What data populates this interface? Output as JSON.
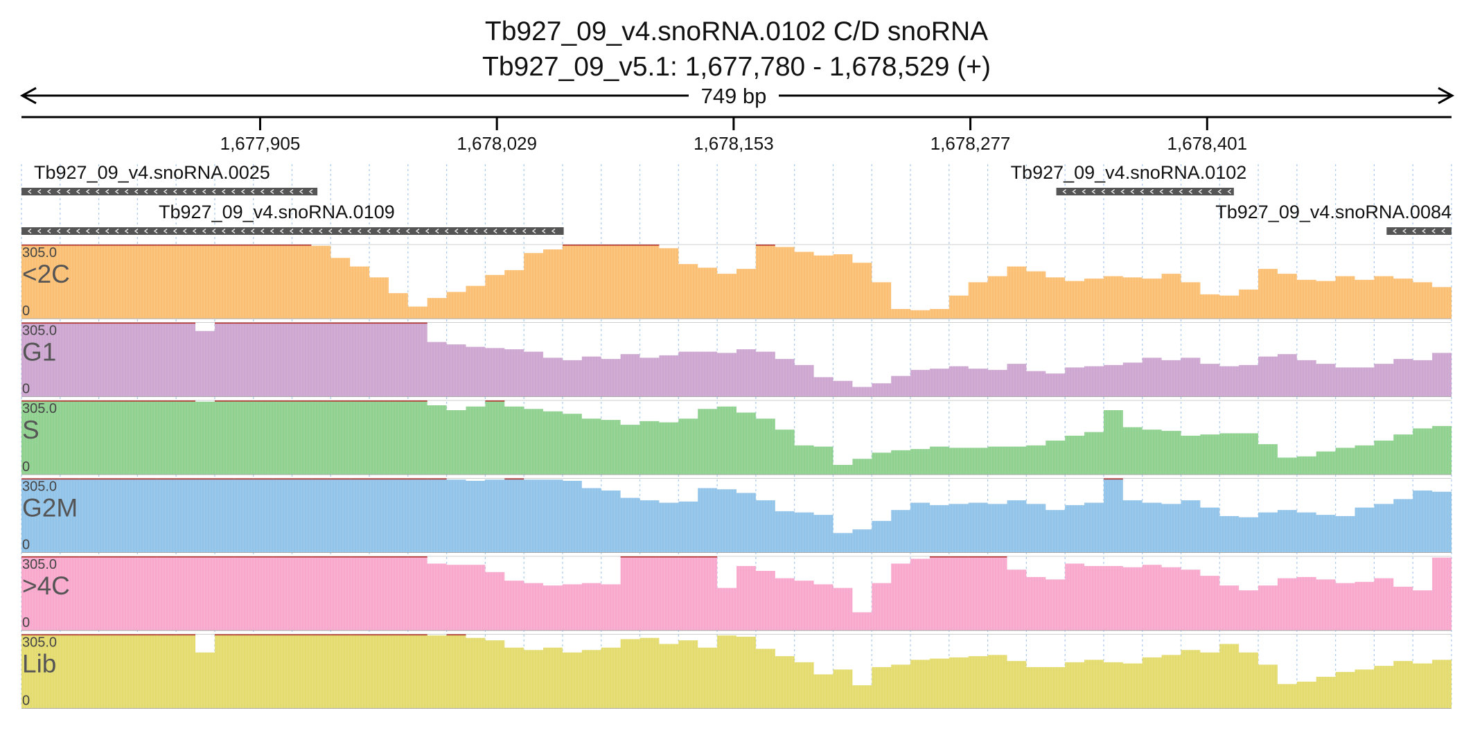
{
  "header": {
    "title_line1": "Tb927_09_v4.snoRNA.0102  C/D snoRNA",
    "title_line2": "Tb927_09_v5.1: 1,677,780 - 1,678,529 (+)",
    "span_label": "749 bp"
  },
  "chart_data": {
    "type": "area",
    "chromosome": "Tb927_09_v5.1",
    "region": {
      "start": 1677780,
      "end": 1678529,
      "strand": "+"
    },
    "x_ticks": [
      1677905,
      1678029,
      1678153,
      1678277,
      1678401
    ],
    "x_tick_labels": [
      "1,677,905",
      "1,678,029",
      "1,678,153",
      "1,678,277",
      "1,678,401"
    ],
    "ylim": [
      0,
      305.0
    ],
    "y_max_label": "305.0",
    "y_min_label": "0",
    "bin_count": 74,
    "genes": [
      {
        "name": "Tb927_09_v4.snoRNA.0025",
        "start": 1677780,
        "end": 1677935,
        "strand": "-"
      },
      {
        "name": "Tb927_09_v4.snoRNA.0109",
        "start": 1677780,
        "end": 1678064,
        "strand": "-"
      },
      {
        "name": "Tb927_09_v4.snoRNA.0102",
        "start": 1678322,
        "end": 1678415,
        "strand": "-"
      },
      {
        "name": "Tb927_09_v4.snoRNA.0084",
        "start": 1678495,
        "end": 1678529,
        "strand": "-"
      }
    ],
    "series": [
      {
        "name": "<2C",
        "color": "#fbbf74",
        "values": [
          305,
          305,
          305,
          305,
          305,
          305,
          305,
          305,
          305,
          305,
          305,
          305,
          305,
          305,
          305,
          300,
          250,
          215,
          170,
          105,
          50,
          85,
          110,
          135,
          180,
          200,
          270,
          285,
          305,
          305,
          305,
          305,
          305,
          290,
          225,
          210,
          185,
          205,
          305,
          295,
          275,
          260,
          265,
          230,
          150,
          40,
          35,
          40,
          95,
          150,
          175,
          215,
          195,
          170,
          155,
          165,
          175,
          170,
          165,
          185,
          150,
          100,
          95,
          120,
          205,
          185,
          160,
          155,
          175,
          160,
          175,
          165,
          150,
          130
        ]
      },
      {
        "name": "G1",
        "color": "#cda6d1",
        "values": [
          305,
          305,
          305,
          305,
          305,
          305,
          305,
          305,
          305,
          270,
          305,
          305,
          305,
          305,
          305,
          305,
          305,
          305,
          305,
          305,
          305,
          225,
          215,
          205,
          200,
          195,
          185,
          160,
          150,
          165,
          155,
          175,
          160,
          170,
          185,
          185,
          180,
          195,
          185,
          155,
          130,
          80,
          65,
          40,
          55,
          85,
          110,
          115,
          125,
          115,
          110,
          135,
          105,
          95,
          120,
          125,
          130,
          140,
          160,
          150,
          160,
          135,
          125,
          130,
          165,
          175,
          150,
          135,
          120,
          120,
          135,
          155,
          150,
          180
        ]
      },
      {
        "name": "S",
        "color": "#8fd18f",
        "values": [
          305,
          305,
          305,
          305,
          305,
          305,
          305,
          305,
          305,
          300,
          305,
          305,
          305,
          305,
          305,
          305,
          305,
          305,
          305,
          305,
          305,
          285,
          265,
          280,
          305,
          280,
          270,
          260,
          250,
          230,
          225,
          205,
          220,
          215,
          230,
          270,
          280,
          255,
          230,
          185,
          120,
          115,
          40,
          65,
          90,
          100,
          105,
          115,
          110,
          110,
          115,
          115,
          120,
          140,
          160,
          175,
          265,
          195,
          185,
          180,
          160,
          165,
          170,
          170,
          125,
          70,
          75,
          95,
          110,
          120,
          140,
          165,
          190,
          200
        ]
      },
      {
        "name": "G2M",
        "color": "#92c3e9",
        "values": [
          305,
          305,
          305,
          305,
          305,
          305,
          305,
          305,
          305,
          305,
          305,
          305,
          305,
          305,
          305,
          305,
          305,
          305,
          305,
          305,
          305,
          305,
          300,
          295,
          300,
          305,
          300,
          300,
          295,
          265,
          255,
          225,
          215,
          205,
          210,
          265,
          260,
          245,
          215,
          170,
          165,
          155,
          80,
          95,
          130,
          175,
          205,
          195,
          200,
          205,
          200,
          215,
          200,
          175,
          195,
          205,
          305,
          215,
          205,
          200,
          215,
          185,
          150,
          145,
          165,
          175,
          165,
          155,
          150,
          185,
          200,
          220,
          255,
          250
        ]
      },
      {
        "name": ">4C",
        "color": "#f7a8cc",
        "values": [
          305,
          305,
          305,
          305,
          305,
          305,
          305,
          305,
          305,
          305,
          305,
          305,
          305,
          305,
          305,
          305,
          305,
          305,
          305,
          305,
          305,
          275,
          270,
          270,
          240,
          205,
          195,
          185,
          190,
          195,
          190,
          305,
          305,
          305,
          305,
          305,
          175,
          265,
          245,
          215,
          205,
          190,
          175,
          75,
          195,
          275,
          295,
          305,
          305,
          305,
          305,
          250,
          220,
          210,
          275,
          265,
          265,
          260,
          270,
          260,
          250,
          225,
          185,
          165,
          185,
          215,
          220,
          210,
          195,
          200,
          215,
          180,
          165,
          300
        ]
      },
      {
        "name": "Lib",
        "color": "#e4db6e",
        "values": [
          305,
          305,
          305,
          305,
          305,
          305,
          305,
          305,
          305,
          230,
          305,
          305,
          305,
          305,
          305,
          305,
          305,
          305,
          305,
          305,
          305,
          300,
          305,
          290,
          280,
          250,
          240,
          250,
          230,
          240,
          250,
          285,
          290,
          265,
          280,
          250,
          300,
          295,
          245,
          215,
          190,
          140,
          160,
          95,
          170,
          180,
          200,
          205,
          210,
          215,
          220,
          195,
          170,
          170,
          190,
          200,
          190,
          185,
          210,
          220,
          240,
          230,
          265,
          230,
          180,
          100,
          110,
          130,
          150,
          160,
          175,
          195,
          185,
          200
        ]
      }
    ]
  }
}
